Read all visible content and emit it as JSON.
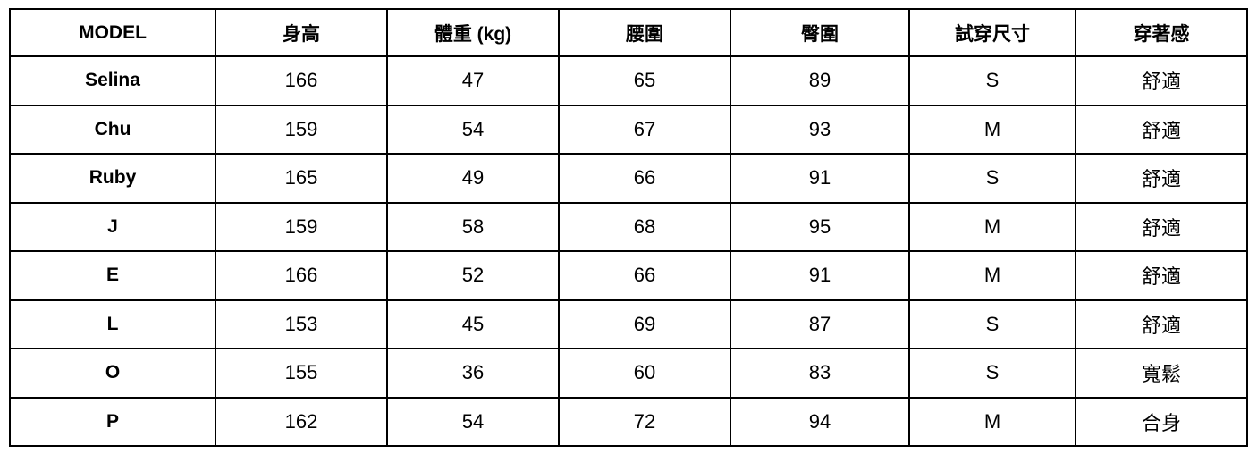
{
  "table": {
    "headers": [
      "MODEL",
      "身高",
      "體重 (kg)",
      "腰圍",
      "臀圍",
      "試穿尺寸",
      "穿著感"
    ],
    "rows": [
      [
        "Selina",
        "166",
        "47",
        "65",
        "89",
        "S",
        "舒適"
      ],
      [
        "Chu",
        "159",
        "54",
        "67",
        "93",
        "M",
        "舒適"
      ],
      [
        "Ruby",
        "165",
        "49",
        "66",
        "91",
        "S",
        "舒適"
      ],
      [
        "J",
        "159",
        "58",
        "68",
        "95",
        "M",
        "舒適"
      ],
      [
        "E",
        "166",
        "52",
        "66",
        "91",
        "M",
        "舒適"
      ],
      [
        "L",
        "153",
        "45",
        "69",
        "87",
        "S",
        "舒適"
      ],
      [
        "O",
        "155",
        "36",
        "60",
        "83",
        "S",
        "寬鬆"
      ],
      [
        "P",
        "162",
        "54",
        "72",
        "94",
        "M",
        "合身"
      ]
    ]
  }
}
